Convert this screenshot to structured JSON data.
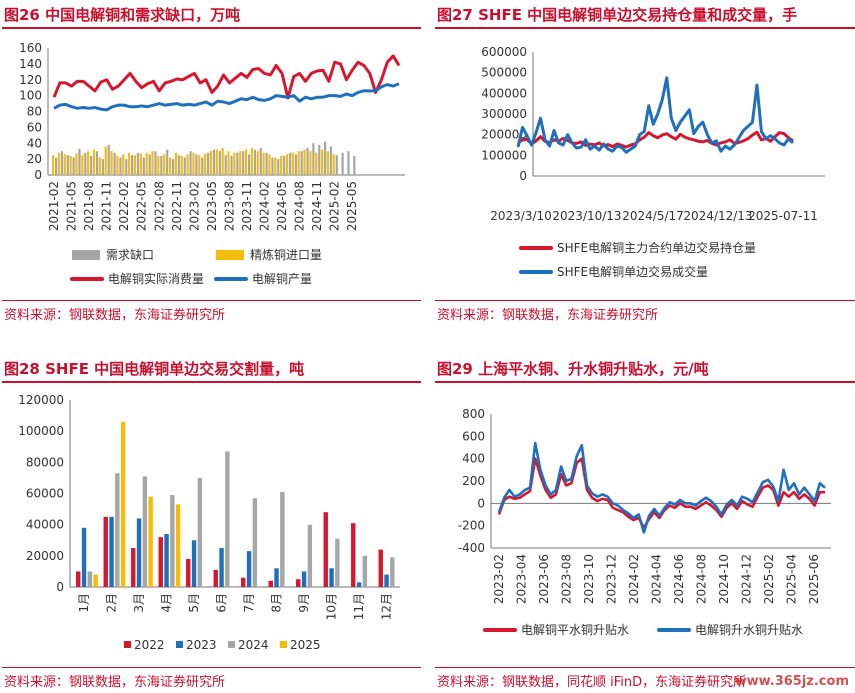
{
  "watermark": "www.365jz.com",
  "colors": {
    "red": "#d5172f",
    "blue": "#1f6fbd",
    "gray": "#a6a6a6",
    "yellow": "#f5bd0a",
    "title_red": "#c8102e"
  },
  "panels": [
    {
      "title": "图26  中国电解铜和需求缺口，万吨",
      "source": "资料来源：钢联数据，东海证券研究所"
    },
    {
      "title": "图27  SHFE 中国电解铜单边交易持仓量和成交量，手",
      "source": "资料来源：钢联数据，东海证券研究所"
    },
    {
      "title": "图28  SHFE 中国电解铜单边交易交割量，吨",
      "source": "资料来源：钢联数据，东海证券研究所"
    },
    {
      "title": "图29  上海平水铜、升水铜升贴水，元/吨",
      "source": "资料来源：钢联数据，同花顺 iFinD，东海证券研究所"
    }
  ],
  "chart_data": [
    {
      "type": "bar",
      "combo": "bar+line",
      "yticks": [
        0,
        20,
        40,
        60,
        80,
        100,
        120,
        140,
        160
      ],
      "ylim": [
        0,
        160
      ],
      "x_tick_labels": [
        "2021-02",
        "2021-05",
        "2021-08",
        "2021-11",
        "2022-02",
        "2022-05",
        "2022-08",
        "2022-11",
        "2023-02",
        "2023-05",
        "2023-08",
        "2023-11",
        "2024-02",
        "2024-05",
        "2024-08",
        "2024-11",
        "2025-02",
        "2025-05"
      ],
      "x_start": "2021-02",
      "legend": [
        "需求缺口",
        "精炼铜进口量",
        "电解铜实际消费量",
        "电解铜产量"
      ],
      "series": [
        {
          "name": "需求缺口",
          "kind": "bar",
          "color": "#a6a6a6",
          "values": [
            22,
            30,
            25,
            22,
            33,
            28,
            24,
            30,
            20,
            38,
            28,
            22,
            20,
            25,
            28,
            22,
            26,
            30,
            24,
            32,
            20,
            25,
            22,
            30,
            26,
            22,
            28,
            32,
            30,
            25,
            24,
            28,
            30,
            26,
            32,
            34,
            28,
            22,
            20,
            24,
            28,
            26,
            30,
            34,
            40,
            38,
            42,
            36,
            25,
            28,
            30,
            24
          ]
        },
        {
          "name": "精炼铜进口量",
          "kind": "bar",
          "color": "#f5bd0a",
          "values": [
            25,
            28,
            26,
            24,
            27,
            25,
            30,
            32,
            22,
            36,
            30,
            24,
            26,
            28,
            25,
            27,
            28,
            30,
            24,
            26,
            22,
            28,
            24,
            26,
            28,
            25,
            27,
            30,
            32,
            34,
            30,
            28,
            30,
            32,
            34,
            30,
            28,
            26,
            22,
            24,
            26,
            28,
            30,
            32,
            30,
            28,
            32,
            30,
            26
          ]
        },
        {
          "name": "电解铜实际消费量",
          "kind": "line",
          "color": "#d5172f",
          "values": [
            98,
            116,
            116,
            112,
            118,
            118,
            112,
            106,
            117,
            120,
            108,
            112,
            120,
            128,
            118,
            110,
            115,
            118,
            106,
            116,
            118,
            121,
            120,
            124,
            128,
            116,
            120,
            104,
            112,
            126,
            116,
            122,
            128,
            123,
            133,
            134,
            128,
            126,
            138,
            128,
            97,
            124,
            128,
            118,
            128,
            131,
            132,
            118,
            142,
            140,
            120,
            132,
            142,
            138,
            128,
            104,
            120,
            142,
            150,
            138
          ]
        },
        {
          "name": "电解铜产量",
          "kind": "line",
          "color": "#1f6fbd",
          "values": [
            84,
            88,
            89,
            86,
            84,
            85,
            84,
            85,
            83,
            82,
            86,
            88,
            88,
            86,
            86,
            87,
            86,
            88,
            90,
            88,
            89,
            90,
            88,
            89,
            88,
            90,
            92,
            88,
            93,
            92,
            90,
            93,
            96,
            95,
            98,
            95,
            94,
            96,
            100,
            99,
            98,
            100,
            93,
            98,
            96,
            98,
            98,
            100,
            100,
            99,
            102,
            100,
            104,
            106,
            106,
            106,
            111,
            114,
            112,
            115
          ]
        }
      ]
    },
    {
      "type": "line",
      "yticks": [
        0,
        100000,
        200000,
        300000,
        400000,
        500000,
        600000
      ],
      "ylim": [
        0,
        600000
      ],
      "x_tick_labels": [
        "2023/3/10",
        "2023/10/13",
        "2024/5/17",
        "2024/12/13",
        "2025-07-11"
      ],
      "x_range": [
        "2023-03-10",
        "2025-07-25"
      ],
      "series": [
        {
          "name": "SHFE电解铜主力合约单边交易持仓量",
          "color": "#d5172f",
          "values": [
            160000,
            175000,
            178000,
            155000,
            170000,
            190000,
            168000,
            162000,
            175000,
            168000,
            182000,
            172000,
            160000,
            158000,
            165000,
            148000,
            155000,
            150000,
            160000,
            145000,
            152000,
            142000,
            155000,
            148000,
            140000,
            150000,
            156000,
            175000,
            188000,
            210000,
            195000,
            185000,
            198000,
            205000,
            190000,
            178000,
            202000,
            188000,
            180000,
            175000,
            168000,
            165000,
            172000,
            158000,
            150000,
            160000,
            165000,
            175000,
            158000,
            162000,
            170000,
            180000,
            198000,
            212000,
            175000,
            182000,
            168000,
            190000,
            210000,
            205000,
            185000,
            170000
          ]
        },
        {
          "name": "SHFE电解铜单边交易成交量",
          "color": "#1f6fbd",
          "values": [
            140000,
            235000,
            195000,
            150000,
            210000,
            280000,
            175000,
            145000,
            220000,
            160000,
            150000,
            200000,
            160000,
            135000,
            140000,
            175000,
            130000,
            145000,
            125000,
            155000,
            130000,
            120000,
            145000,
            138000,
            115000,
            130000,
            145000,
            200000,
            215000,
            340000,
            250000,
            300000,
            370000,
            475000,
            280000,
            220000,
            260000,
            290000,
            320000,
            205000,
            240000,
            260000,
            200000,
            160000,
            170000,
            120000,
            145000,
            130000,
            150000,
            185000,
            220000,
            240000,
            260000,
            440000,
            215000,
            180000,
            195000,
            180000,
            160000,
            150000,
            180000,
            160000
          ]
        }
      ]
    },
    {
      "type": "bar",
      "categories": [
        "1月",
        "2月",
        "3月",
        "4月",
        "5月",
        "6月",
        "7月",
        "8月",
        "9月",
        "10月",
        "11月",
        "12月"
      ],
      "yticks": [
        0,
        20000,
        40000,
        60000,
        80000,
        100000,
        120000
      ],
      "ylim": [
        0,
        120000
      ],
      "series": [
        {
          "name": "2022",
          "color": "#d5172f",
          "values": [
            10000,
            45000,
            25000,
            32000,
            18000,
            11000,
            6000,
            4000,
            5000,
            48000,
            41000,
            24000
          ]
        },
        {
          "name": "2023",
          "color": "#1f6fbd",
          "values": [
            38000,
            45000,
            44000,
            34000,
            30000,
            25000,
            23000,
            12000,
            10000,
            12000,
            3000,
            8000
          ]
        },
        {
          "name": "2024",
          "color": "#a6a6a6",
          "values": [
            10000,
            73000,
            71000,
            59000,
            70000,
            87000,
            57000,
            61000,
            40000,
            31000,
            20000,
            19000
          ]
        },
        {
          "name": "2025",
          "color": "#f5bd0a",
          "values": [
            8000,
            106000,
            58000,
            53000,
            null,
            null,
            null,
            null,
            null,
            null,
            null,
            null
          ]
        }
      ]
    },
    {
      "type": "line",
      "yticks": [
        -400,
        -300,
        -200,
        -100,
        0,
        100,
        200,
        300,
        400,
        500,
        600,
        700,
        800
      ],
      "ylim": [
        -400,
        800
      ],
      "x_tick_labels": [
        "2023-02",
        "2023-04",
        "2023-06",
        "2023-08",
        "2023-10",
        "2023-12",
        "2024-02",
        "2024-04",
        "2024-06",
        "2024-08",
        "2024-10",
        "2024-12",
        "2025-02",
        "2025-04",
        "2025-06"
      ],
      "x_start": "2023-02",
      "series": [
        {
          "name": "电解铜平水铜升贴水",
          "color": "#d5172f",
          "values": [
            -100,
            30,
            60,
            40,
            50,
            80,
            110,
            400,
            250,
            120,
            50,
            80,
            260,
            160,
            180,
            360,
            400,
            120,
            50,
            20,
            40,
            30,
            -40,
            -60,
            -80,
            -120,
            -150,
            -130,
            -220,
            -140,
            -80,
            -130,
            -60,
            -20,
            -40,
            0,
            -30,
            -30,
            -50,
            -20,
            10,
            -20,
            -60,
            -120,
            -40,
            0,
            -50,
            20,
            -10,
            -30,
            60,
            140,
            160,
            120,
            -20,
            100,
            60,
            100,
            40,
            80,
            40,
            -20,
            100,
            100
          ]
        },
        {
          "name": "电解铜升水铜升贴水",
          "color": "#1f6fbd",
          "values": [
            -80,
            50,
            120,
            60,
            80,
            120,
            140,
            540,
            300,
            160,
            80,
            120,
            330,
            200,
            220,
            420,
            520,
            160,
            90,
            60,
            80,
            60,
            0,
            -20,
            -60,
            -90,
            -130,
            -100,
            -260,
            -110,
            -50,
            -110,
            -40,
            10,
            -10,
            30,
            0,
            0,
            -20,
            20,
            50,
            20,
            -30,
            -100,
            -10,
            30,
            -20,
            60,
            40,
            10,
            100,
            190,
            210,
            150,
            20,
            300,
            120,
            180,
            80,
            140,
            80,
            20,
            180,
            140
          ]
        }
      ]
    }
  ]
}
